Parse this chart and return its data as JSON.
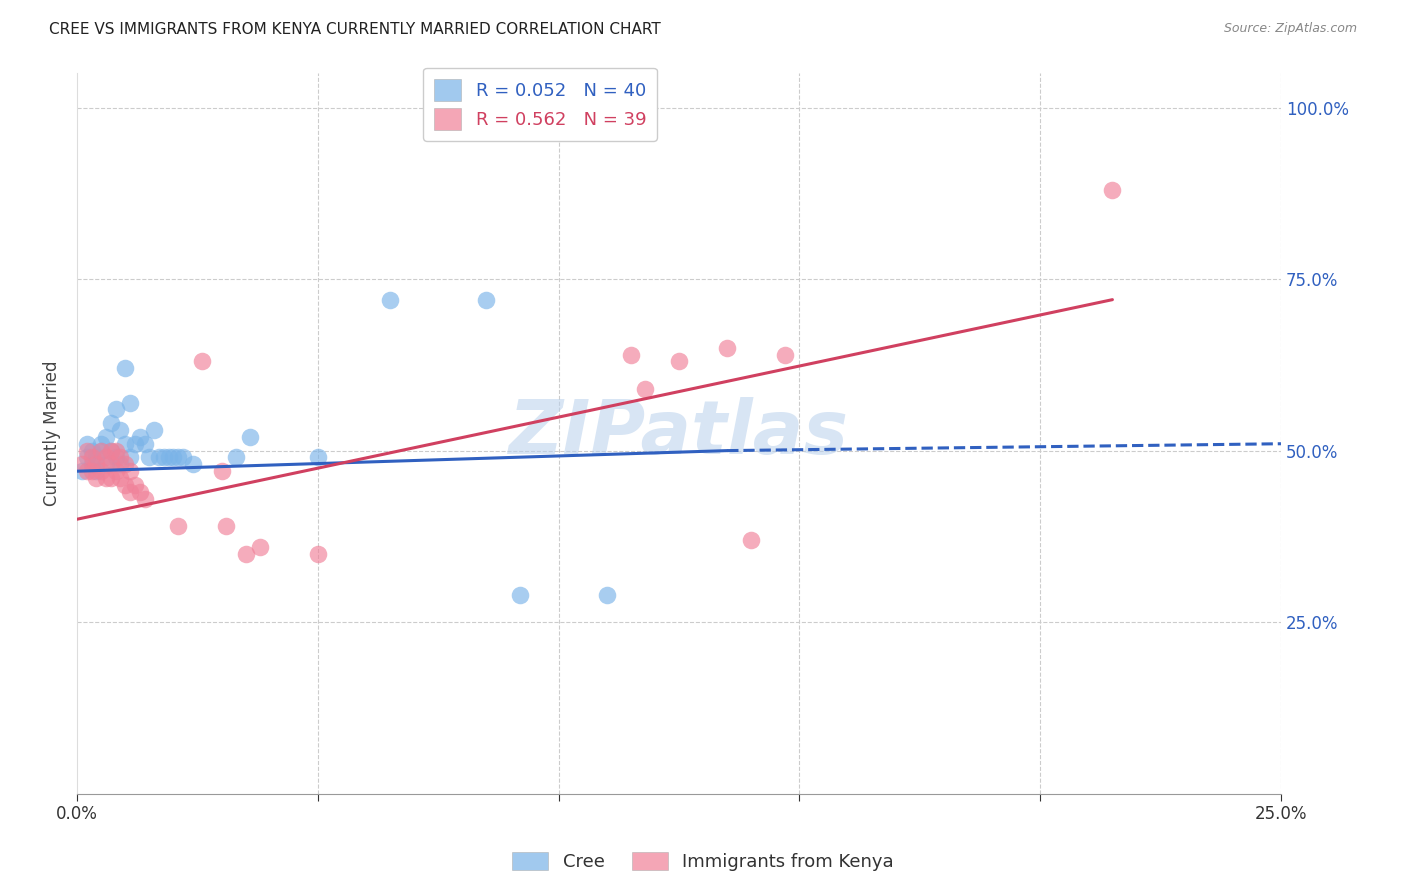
{
  "title": "CREE VS IMMIGRANTS FROM KENYA CURRENTLY MARRIED CORRELATION CHART",
  "source": "Source: ZipAtlas.com",
  "ylabel": "Currently Married",
  "xlim": [
    0.0,
    0.25
  ],
  "ylim": [
    0.0,
    1.05
  ],
  "watermark": "ZIPatlas",
  "cree_color": "#7ab3e8",
  "kenya_color": "#f08098",
  "cree_line_color": "#3060c0",
  "kenya_line_color": "#d04060",
  "background_color": "#ffffff",
  "cree_R": 0.052,
  "cree_N": 40,
  "kenya_R": 0.562,
  "kenya_N": 39,
  "cree_points": [
    [
      0.001,
      0.47
    ],
    [
      0.002,
      0.51
    ],
    [
      0.002,
      0.49
    ],
    [
      0.003,
      0.5
    ],
    [
      0.003,
      0.48
    ],
    [
      0.004,
      0.49
    ],
    [
      0.004,
      0.47
    ],
    [
      0.005,
      0.5
    ],
    [
      0.005,
      0.51
    ],
    [
      0.006,
      0.48
    ],
    [
      0.006,
      0.52
    ],
    [
      0.007,
      0.54
    ],
    [
      0.007,
      0.5
    ],
    [
      0.008,
      0.56
    ],
    [
      0.008,
      0.49
    ],
    [
      0.009,
      0.53
    ],
    [
      0.009,
      0.48
    ],
    [
      0.01,
      0.51
    ],
    [
      0.01,
      0.62
    ],
    [
      0.011,
      0.57
    ],
    [
      0.011,
      0.49
    ],
    [
      0.012,
      0.51
    ],
    [
      0.013,
      0.52
    ],
    [
      0.014,
      0.51
    ],
    [
      0.015,
      0.49
    ],
    [
      0.016,
      0.53
    ],
    [
      0.017,
      0.49
    ],
    [
      0.018,
      0.49
    ],
    [
      0.019,
      0.49
    ],
    [
      0.02,
      0.49
    ],
    [
      0.021,
      0.49
    ],
    [
      0.022,
      0.49
    ],
    [
      0.024,
      0.48
    ],
    [
      0.033,
      0.49
    ],
    [
      0.036,
      0.52
    ],
    [
      0.05,
      0.49
    ],
    [
      0.065,
      0.72
    ],
    [
      0.085,
      0.72
    ],
    [
      0.092,
      0.29
    ],
    [
      0.11,
      0.29
    ]
  ],
  "kenya_points": [
    [
      0.001,
      0.48
    ],
    [
      0.002,
      0.5
    ],
    [
      0.002,
      0.47
    ],
    [
      0.003,
      0.49
    ],
    [
      0.003,
      0.47
    ],
    [
      0.004,
      0.46
    ],
    [
      0.004,
      0.48
    ],
    [
      0.005,
      0.5
    ],
    [
      0.005,
      0.47
    ],
    [
      0.006,
      0.49
    ],
    [
      0.006,
      0.46
    ],
    [
      0.007,
      0.5
    ],
    [
      0.007,
      0.48
    ],
    [
      0.007,
      0.46
    ],
    [
      0.008,
      0.5
    ],
    [
      0.008,
      0.47
    ],
    [
      0.009,
      0.49
    ],
    [
      0.009,
      0.46
    ],
    [
      0.01,
      0.48
    ],
    [
      0.01,
      0.45
    ],
    [
      0.011,
      0.47
    ],
    [
      0.011,
      0.44
    ],
    [
      0.012,
      0.45
    ],
    [
      0.013,
      0.44
    ],
    [
      0.014,
      0.43
    ],
    [
      0.021,
      0.39
    ],
    [
      0.026,
      0.63
    ],
    [
      0.03,
      0.47
    ],
    [
      0.031,
      0.39
    ],
    [
      0.035,
      0.35
    ],
    [
      0.038,
      0.36
    ],
    [
      0.05,
      0.35
    ],
    [
      0.115,
      0.64
    ],
    [
      0.118,
      0.59
    ],
    [
      0.125,
      0.63
    ],
    [
      0.135,
      0.65
    ],
    [
      0.14,
      0.37
    ],
    [
      0.147,
      0.64
    ],
    [
      0.215,
      0.88
    ]
  ],
  "cree_line": {
    "x0": 0.0,
    "y0": 0.47,
    "x1": 0.135,
    "y1": 0.5,
    "xdash0": 0.135,
    "ydash0": 0.5,
    "xdash1": 0.25,
    "ydash1": 0.51
  },
  "kenya_line": {
    "x0": 0.0,
    "y0": 0.4,
    "x1": 0.215,
    "y1": 0.72
  }
}
